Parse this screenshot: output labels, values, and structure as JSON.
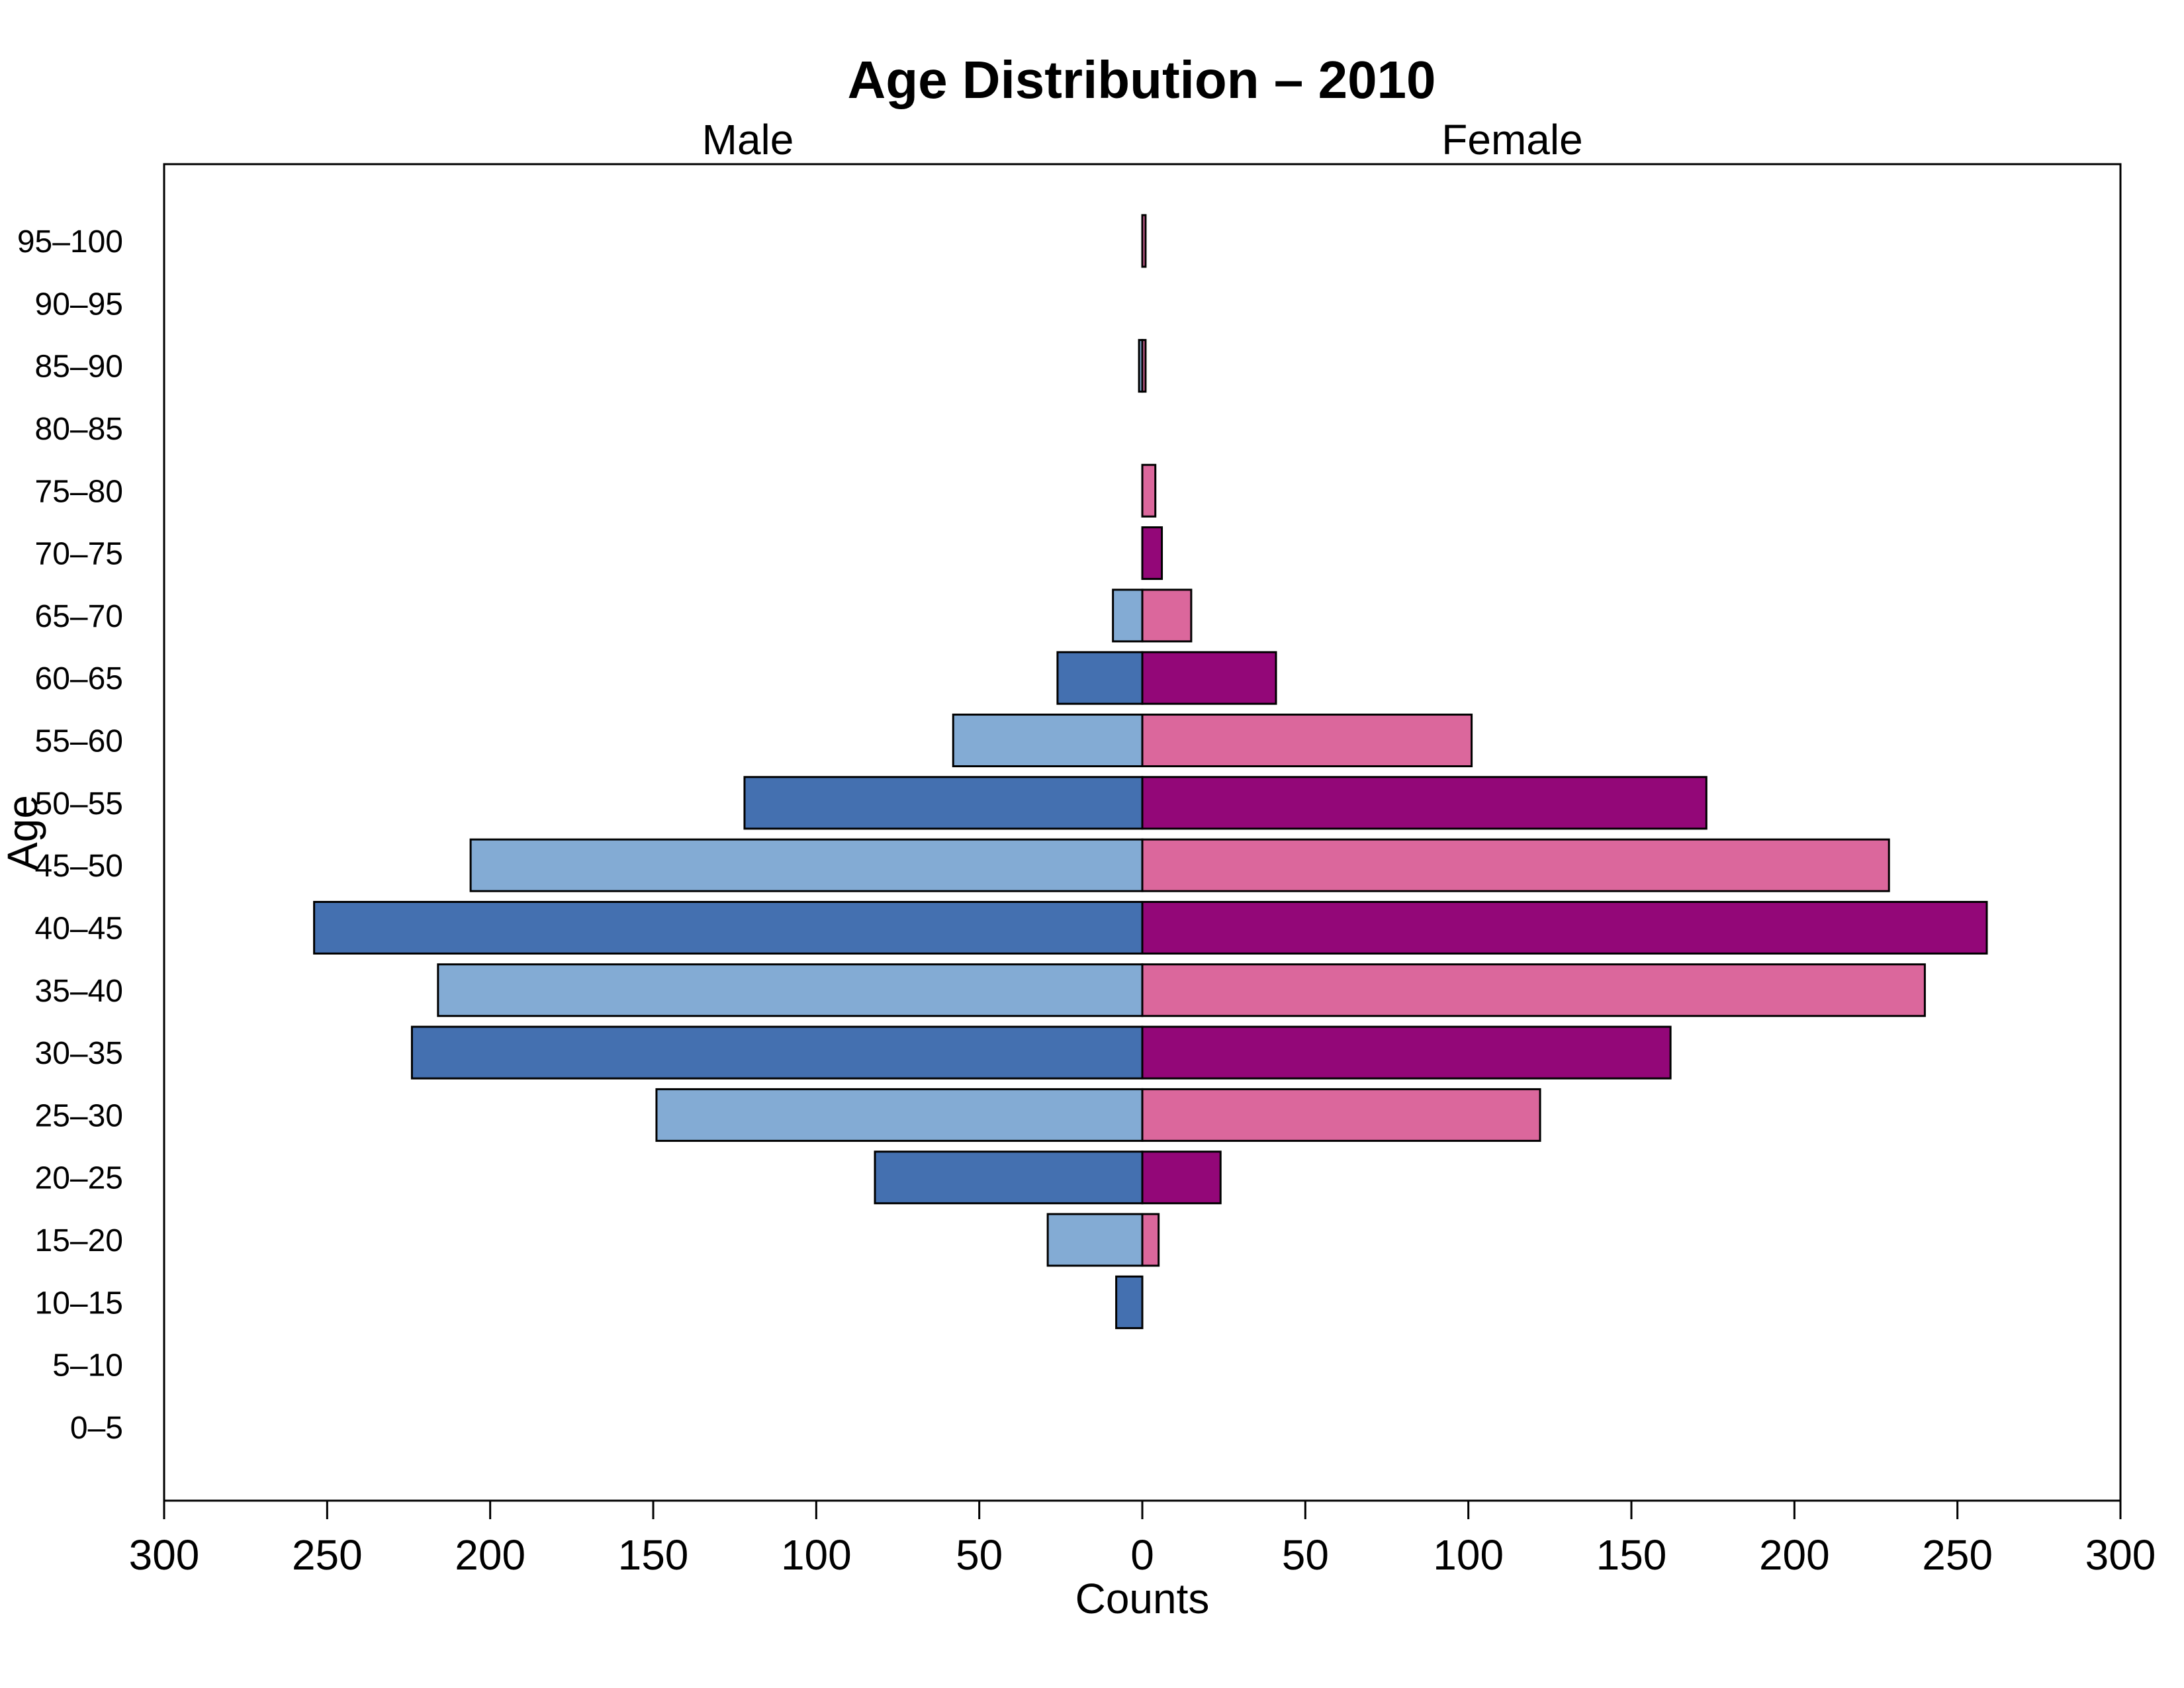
{
  "chart_data": {
    "type": "bar",
    "orientation": "horizontal",
    "title": "Age Distribution – 2010",
    "left_label": "Male",
    "right_label": "Female",
    "xlabel": "Counts",
    "ylabel": "Age",
    "xlim": [
      -300,
      300
    ],
    "x_ticks": [
      -300,
      -250,
      -200,
      -150,
      -100,
      -50,
      0,
      50,
      100,
      150,
      200,
      250,
      300
    ],
    "x_tick_labels": [
      "300",
      "250",
      "200",
      "150",
      "100",
      "50",
      "0",
      "50",
      "100",
      "150",
      "200",
      "250",
      "300"
    ],
    "grid": false,
    "categories": [
      "0–5",
      "5–10",
      "10–15",
      "15–20",
      "20–25",
      "25–30",
      "30–35",
      "35–40",
      "40–45",
      "45–50",
      "50–55",
      "55–60",
      "60–65",
      "65–70",
      "70–75",
      "75–80",
      "80–85",
      "85–90",
      "90–95",
      "95–100"
    ],
    "series": [
      {
        "name": "Male",
        "values": [
          0,
          0,
          8,
          29,
          82,
          149,
          224,
          216,
          254,
          206,
          122,
          58,
          26,
          9,
          0,
          0,
          0,
          1,
          0,
          0
        ],
        "colors": [
          "#4470b0",
          "#83abd4"
        ]
      },
      {
        "name": "Female",
        "values": [
          0,
          0,
          0,
          5,
          24,
          122,
          162,
          240,
          259,
          229,
          173,
          101,
          41,
          15,
          6,
          4,
          0,
          1,
          0,
          1
        ],
        "colors": [
          "#930778",
          "#db679c"
        ]
      }
    ]
  }
}
